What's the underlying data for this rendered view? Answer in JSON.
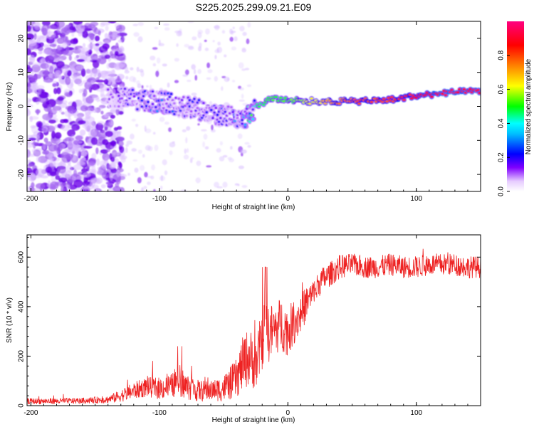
{
  "title": "S225.2025.299.09.21.E09",
  "chart_data": [
    {
      "type": "heatmap",
      "name": "spectrogram",
      "xlabel": "Height of straight line (km)",
      "ylabel": "Frequency (Hz)",
      "xlim": [
        -203,
        150
      ],
      "ylim": [
        -25,
        25
      ],
      "xticks": [
        -200,
        -100,
        0,
        100
      ],
      "xtick_labels": [
        "-200",
        "-100",
        "0",
        "100"
      ],
      "yticks": [
        -20,
        -10,
        0,
        10,
        20
      ],
      "ytick_labels": [
        "-20",
        "-10",
        "0",
        "10",
        "20"
      ],
      "colorbar": {
        "label": "Normalized spectral amplitude",
        "range": [
          0,
          1
        ],
        "ticks": [
          0.0,
          0.2,
          0.4,
          0.6,
          0.8
        ],
        "tick_labels": [
          "0.0",
          "0.2",
          "0.4",
          "0.6",
          "0.8"
        ],
        "colormap": [
          "#ffffff",
          "#d9b3ff",
          "#8000ff",
          "#0000ff",
          "#00ffff",
          "#00ff00",
          "#ffff00",
          "#ff8000",
          "#ff0000",
          "#ff0080"
        ]
      },
      "ridge": {
        "x": [
          -140,
          -120,
          -100,
          -80,
          -60,
          -45,
          -35,
          -25,
          -15,
          0,
          20,
          40,
          60,
          80,
          100,
          120,
          150
        ],
        "hz": [
          3,
          2,
          1.5,
          0,
          -2,
          -3,
          -4,
          0,
          2,
          2,
          1.5,
          1.5,
          1.5,
          2,
          3,
          4,
          4.5
        ],
        "amp": [
          0.15,
          0.25,
          0.3,
          0.25,
          0.25,
          0.3,
          0.35,
          0.5,
          0.6,
          0.6,
          0.7,
          0.8,
          0.85,
          0.85,
          0.9,
          0.95,
          0.95
        ]
      }
    },
    {
      "type": "line",
      "name": "snr",
      "xlabel": "Height of straight line (km)",
      "ylabel": "SNR (10 * v/v)",
      "xlim": [
        -203,
        150
      ],
      "ylim": [
        0,
        690
      ],
      "xticks": [
        -200,
        -100,
        0,
        100
      ],
      "xtick_labels": [
        "-200",
        "-100",
        "0",
        "100"
      ],
      "yticks": [
        0,
        200,
        400,
        600
      ],
      "ytick_labels": [
        "0",
        "200",
        "400",
        "600"
      ],
      "color": "#ee2222",
      "series": [
        {
          "name": "SNR",
          "x": [
            -203,
            -180,
            -160,
            -140,
            -130,
            -120,
            -110,
            -100,
            -90,
            -85,
            -80,
            -70,
            -60,
            -50,
            -40,
            -35,
            -30,
            -25,
            -20,
            -18,
            -15,
            -10,
            -5,
            0,
            5,
            10,
            15,
            20,
            25,
            30,
            35,
            40,
            50,
            60,
            70,
            80,
            90,
            100,
            110,
            120,
            130,
            140,
            150
          ],
          "mean": [
            18,
            18,
            20,
            25,
            40,
            60,
            75,
            70,
            80,
            110,
            80,
            60,
            60,
            70,
            110,
            170,
            200,
            160,
            270,
            330,
            290,
            310,
            330,
            300,
            340,
            370,
            420,
            450,
            500,
            520,
            540,
            560,
            570,
            560,
            560,
            570,
            560,
            560,
            570,
            570,
            570,
            560,
            560
          ],
          "noise": [
            12,
            12,
            12,
            15,
            25,
            35,
            40,
            45,
            50,
            70,
            55,
            45,
            40,
            55,
            80,
            110,
            120,
            100,
            130,
            140,
            120,
            110,
            110,
            100,
            90,
            80,
            70,
            60,
            55,
            50,
            50,
            50,
            45,
            45,
            45,
            45,
            45,
            45,
            45,
            45,
            45,
            45,
            45
          ]
        }
      ]
    }
  ]
}
